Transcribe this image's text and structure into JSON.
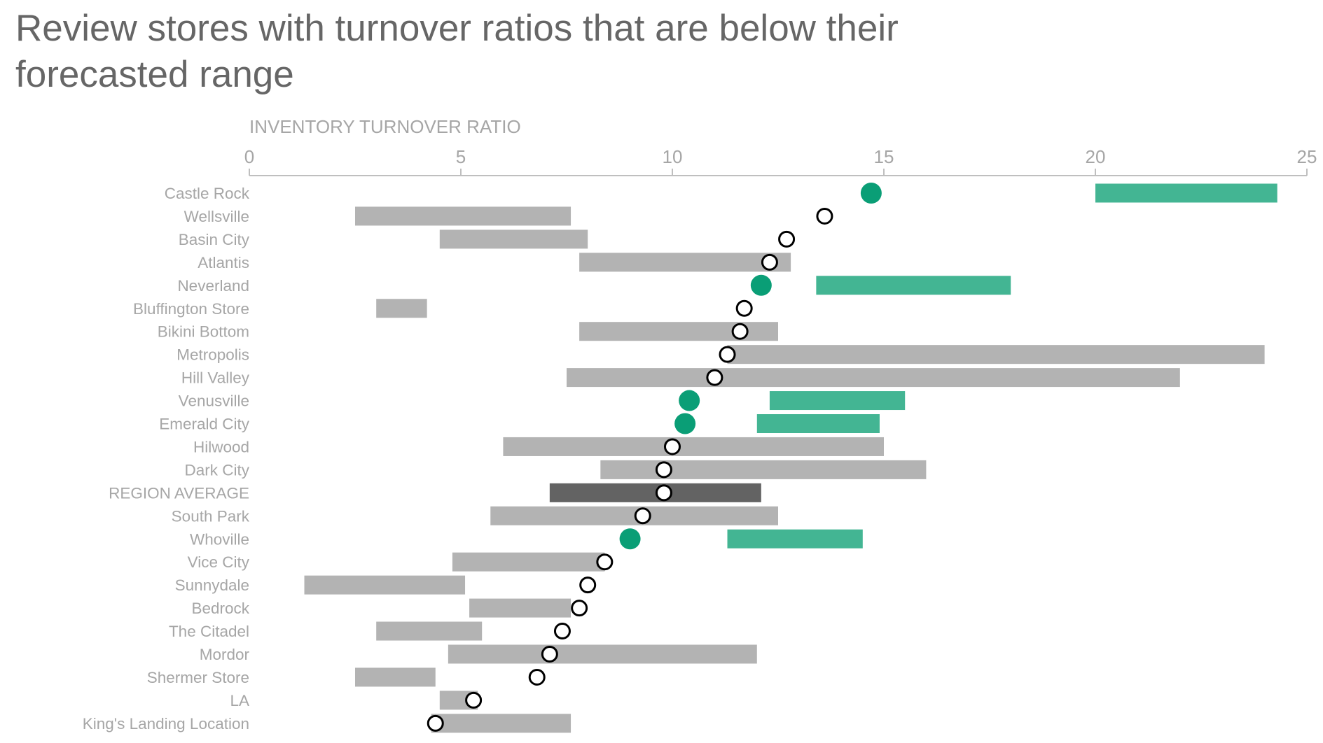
{
  "chart_data": {
    "type": "range-dot",
    "title": "Review stores with turnover ratios that are below their forecasted range",
    "xlabel": "INVENTORY TURNOVER RATIO",
    "xlim": [
      0,
      25
    ],
    "xticks": [
      0,
      5,
      10,
      15,
      20,
      25
    ],
    "grid": false,
    "colors": {
      "below_range_dot": "#0a9e76",
      "below_range_bar": "#43b593",
      "range_bar": "#b3b3b3",
      "average_bar": "#636363",
      "dot_fill": "#ffffff",
      "dot_stroke": "#000000"
    },
    "rows": [
      {
        "name": "Castle Rock",
        "actual": 14.7,
        "range": [
          20.0,
          24.3
        ],
        "status": "below"
      },
      {
        "name": "Wellsville",
        "actual": 13.6,
        "range": [
          2.5,
          7.6
        ],
        "status": "normal"
      },
      {
        "name": "Basin City",
        "actual": 12.7,
        "range": [
          4.5,
          8.0
        ],
        "status": "normal"
      },
      {
        "name": "Atlantis",
        "actual": 12.3,
        "range": [
          7.8,
          12.8
        ],
        "status": "normal"
      },
      {
        "name": "Neverland",
        "actual": 12.1,
        "range": [
          13.4,
          18.0
        ],
        "status": "below"
      },
      {
        "name": "Bluffington Store",
        "actual": 11.7,
        "range": [
          3.0,
          4.2
        ],
        "status": "normal"
      },
      {
        "name": "Bikini Bottom",
        "actual": 11.6,
        "range": [
          7.8,
          12.5
        ],
        "status": "normal"
      },
      {
        "name": "Metropolis",
        "actual": 11.3,
        "range": [
          11.3,
          24.0
        ],
        "status": "normal"
      },
      {
        "name": "Hill Valley",
        "actual": 11.0,
        "range": [
          7.5,
          22.0
        ],
        "status": "normal"
      },
      {
        "name": "Venusville",
        "actual": 10.4,
        "range": [
          12.3,
          15.5
        ],
        "status": "below"
      },
      {
        "name": "Emerald City",
        "actual": 10.3,
        "range": [
          12.0,
          14.9
        ],
        "status": "below"
      },
      {
        "name": "Hilwood",
        "actual": 10.0,
        "range": [
          6.0,
          15.0
        ],
        "status": "normal"
      },
      {
        "name": "Dark City",
        "actual": 9.8,
        "range": [
          8.3,
          16.0
        ],
        "status": "normal"
      },
      {
        "name": "REGION AVERAGE",
        "actual": 9.8,
        "range": [
          7.1,
          12.1
        ],
        "status": "average"
      },
      {
        "name": "South Park",
        "actual": 9.3,
        "range": [
          5.7,
          12.5
        ],
        "status": "normal"
      },
      {
        "name": "Whoville",
        "actual": 9.0,
        "range": [
          11.3,
          14.5
        ],
        "status": "below"
      },
      {
        "name": "Vice City",
        "actual": 8.4,
        "range": [
          4.8,
          8.4
        ],
        "status": "normal"
      },
      {
        "name": "Sunnydale",
        "actual": 8.0,
        "range": [
          1.3,
          5.1
        ],
        "status": "normal"
      },
      {
        "name": "Bedrock",
        "actual": 7.8,
        "range": [
          5.2,
          7.6
        ],
        "status": "normal"
      },
      {
        "name": "The Citadel",
        "actual": 7.4,
        "range": [
          3.0,
          5.5
        ],
        "status": "normal"
      },
      {
        "name": "Mordor",
        "actual": 7.1,
        "range": [
          4.7,
          12.0
        ],
        "status": "normal"
      },
      {
        "name": "Shermer Store",
        "actual": 6.8,
        "range": [
          2.5,
          4.4
        ],
        "status": "normal"
      },
      {
        "name": "LA",
        "actual": 5.3,
        "range": [
          4.5,
          5.4
        ],
        "status": "normal"
      },
      {
        "name": "King's Landing Location",
        "actual": 4.4,
        "range": [
          4.3,
          7.6
        ],
        "status": "normal"
      }
    ]
  }
}
